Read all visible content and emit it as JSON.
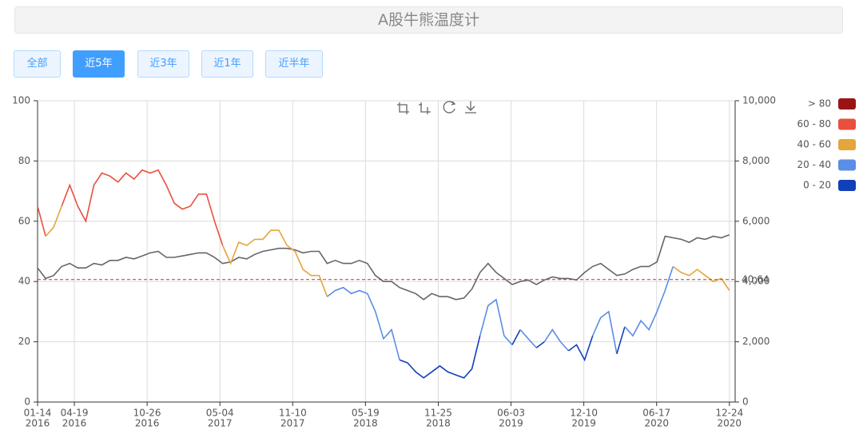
{
  "header": {
    "title": "A股牛熊温度计"
  },
  "buttons": {
    "items": [
      "全部",
      "近5年",
      "近3年",
      "近1年",
      "近半年"
    ],
    "active": 1
  },
  "chart_data": {
    "type": "line",
    "x": [
      "2016-01-14",
      "2016-02-04",
      "2016-02-25",
      "2016-03-17",
      "2016-04-07",
      "2016-04-28",
      "2016-05-19",
      "2016-06-09",
      "2016-06-30",
      "2016-07-21",
      "2016-08-11",
      "2016-09-01",
      "2016-09-22",
      "2016-10-13",
      "2016-11-03",
      "2016-11-24",
      "2016-12-15",
      "2017-01-05",
      "2017-01-26",
      "2017-02-16",
      "2017-03-09",
      "2017-03-30",
      "2017-04-20",
      "2017-05-11",
      "2017-06-01",
      "2017-06-22",
      "2017-07-13",
      "2017-08-03",
      "2017-08-24",
      "2017-09-14",
      "2017-10-05",
      "2017-10-26",
      "2017-11-16",
      "2017-12-07",
      "2017-12-28",
      "2018-01-18",
      "2018-02-08",
      "2018-03-01",
      "2018-03-22",
      "2018-04-12",
      "2018-05-03",
      "2018-05-24",
      "2018-06-14",
      "2018-07-05",
      "2018-07-26",
      "2018-08-16",
      "2018-09-06",
      "2018-09-27",
      "2018-10-18",
      "2018-11-08",
      "2018-11-29",
      "2018-12-20",
      "2019-01-10",
      "2019-01-31",
      "2019-02-21",
      "2019-03-14",
      "2019-04-04",
      "2019-04-25",
      "2019-05-16",
      "2019-06-06",
      "2019-06-27",
      "2019-07-18",
      "2019-08-08",
      "2019-08-29",
      "2019-09-19",
      "2019-10-10",
      "2019-10-31",
      "2019-11-21",
      "2019-12-12",
      "2020-01-02",
      "2020-01-23",
      "2020-02-13",
      "2020-03-05",
      "2020-03-26",
      "2020-04-16",
      "2020-05-07",
      "2020-05-28",
      "2020-06-18",
      "2020-07-09",
      "2020-07-30",
      "2020-08-20",
      "2020-09-10",
      "2020-10-01",
      "2020-10-22",
      "2020-11-12",
      "2020-12-03",
      "2020-12-24"
    ],
    "series": [
      {
        "values": [
          65,
          55,
          58,
          65,
          72,
          65,
          60,
          72,
          76,
          75,
          73,
          76,
          74,
          77,
          76,
          77,
          72,
          66,
          64,
          65,
          69,
          69,
          60,
          52,
          46,
          53,
          52,
          54,
          54,
          57,
          57,
          52,
          50,
          44,
          42,
          42,
          35,
          37,
          38,
          36,
          37,
          36,
          30,
          21,
          24,
          14,
          13,
          10,
          8,
          10,
          12,
          10,
          9,
          8,
          11,
          22,
          32,
          34,
          22,
          19,
          24,
          21,
          18,
          20,
          24,
          20,
          17,
          19,
          14,
          22,
          28,
          30,
          16,
          25,
          22,
          27,
          24,
          30,
          37,
          45,
          43,
          42,
          44,
          42,
          40,
          41,
          37
        ]
      },
      {
        "axis": "y2",
        "color": "#666666",
        "values": [
          4450,
          4100,
          4200,
          4500,
          4600,
          4450,
          4450,
          4600,
          4550,
          4700,
          4700,
          4800,
          4750,
          4850,
          4950,
          5000,
          4800,
          4800,
          4850,
          4900,
          4950,
          4950,
          4800,
          4600,
          4650,
          4800,
          4750,
          4900,
          5000,
          5050,
          5100,
          5100,
          5050,
          4950,
          5000,
          5000,
          4600,
          4700,
          4600,
          4600,
          4700,
          4600,
          4200,
          4000,
          4000,
          3800,
          3700,
          3600,
          3400,
          3600,
          3500,
          3500,
          3400,
          3450,
          3750,
          4300,
          4600,
          4300,
          4100,
          3900,
          4000,
          4050,
          3900,
          4050,
          4150,
          4100,
          4100,
          4050,
          4300,
          4500,
          4600,
          4400,
          4200,
          4250,
          4400,
          4500,
          4500,
          4650,
          5500,
          5450,
          5400,
          5300,
          5450,
          5400,
          5500,
          5450,
          5550
        ]
      }
    ],
    "pieces": [
      {
        "min": 80,
        "label": "> 80",
        "color": "#9b1414"
      },
      {
        "min": 60,
        "max": 80,
        "label": "60 - 80",
        "color": "#e8503e"
      },
      {
        "min": 40,
        "max": 60,
        "label": "40 - 60",
        "color": "#e6a53a"
      },
      {
        "min": 20,
        "max": 40,
        "label": "20 - 40",
        "color": "#5b8ee6"
      },
      {
        "min": 0,
        "max": 20,
        "label": "0 - 20",
        "color": "#1240b8"
      }
    ],
    "mark_line": {
      "value": 40.64,
      "color": "#c23531"
    },
    "xlim": [
      "2016-01-14",
      "2021-01-08"
    ],
    "xticks": [
      {
        "value": "2016-01-14",
        "label": [
          "01-14",
          "2016"
        ]
      },
      {
        "value": "2016-04-19",
        "label": [
          "04-19",
          "2016"
        ]
      },
      {
        "value": "2016-10-26",
        "label": [
          "10-26",
          "2016"
        ]
      },
      {
        "value": "2017-05-04",
        "label": [
          "05-04",
          "2017"
        ]
      },
      {
        "value": "2017-11-10",
        "label": [
          "11-10",
          "2017"
        ]
      },
      {
        "value": "2018-05-19",
        "label": [
          "05-19",
          "2018"
        ]
      },
      {
        "value": "2018-11-25",
        "label": [
          "11-25",
          "2018"
        ]
      },
      {
        "value": "2019-06-03",
        "label": [
          "06-03",
          "2019"
        ]
      },
      {
        "value": "2019-12-10",
        "label": [
          "12-10",
          "2019"
        ]
      },
      {
        "value": "2020-06-17",
        "label": [
          "06-17",
          "2020"
        ]
      },
      {
        "value": "2020-12-24",
        "label": [
          "12-24",
          "2020"
        ]
      }
    ],
    "ylim": [
      0,
      100
    ],
    "yticks": [
      0,
      20,
      40,
      60,
      80,
      100
    ],
    "y2lim": [
      0,
      10000
    ],
    "y2ticks": [
      0,
      {
        "value": 2000,
        "label": "2,000"
      },
      {
        "value": 4000,
        "label": "4,000"
      },
      {
        "value": 6000,
        "label": "6,000"
      },
      {
        "value": 8000,
        "label": "8,000"
      },
      {
        "value": 10000,
        "label": "10,000"
      }
    ],
    "grid": true
  }
}
